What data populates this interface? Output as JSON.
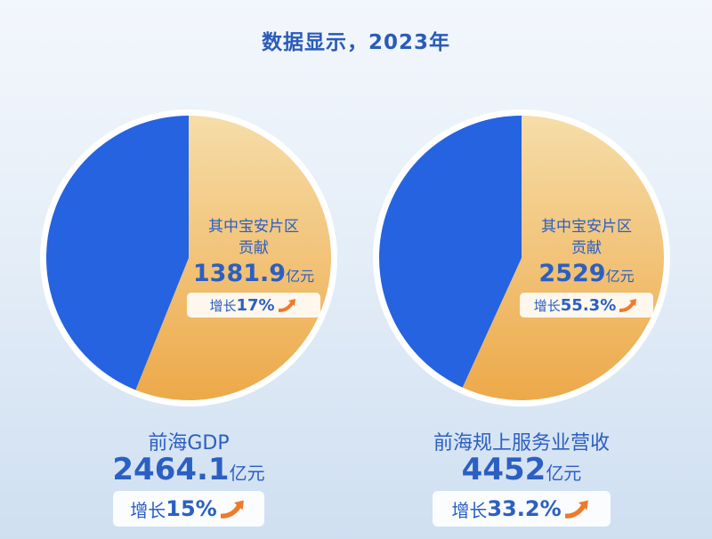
{
  "title": "数据显示，2023年",
  "colors": {
    "blue": "#2563e0",
    "gold_light": "#f6dda8",
    "gold_dark": "#eda949",
    "text": "#2b5fc2",
    "arrow": "#ee7a2b"
  },
  "chart_data": [
    {
      "type": "pie",
      "name": "前海GDP",
      "total": 2464.1,
      "unit": "亿元",
      "growth": "15%",
      "slices": [
        {
          "label": "其中宝安片区贡献",
          "value": 1381.9,
          "color": "#eda949",
          "growth": "17%"
        },
        {
          "label": "",
          "value": 1082.2,
          "color": "#2563e0"
        }
      ]
    },
    {
      "type": "pie",
      "name": "前海规上服务业营收",
      "total": 4452,
      "unit": "亿元",
      "growth": "33.2%",
      "slices": [
        {
          "label": "其中宝安片区贡献",
          "value": 2529,
          "color": "#eda949",
          "growth": "55.3%"
        },
        {
          "label": "",
          "value": 1923,
          "color": "#2563e0"
        }
      ]
    }
  ],
  "left": {
    "sub_line1": "其中宝安片区",
    "sub_line2": "贡献",
    "sub_value": "1381.9",
    "sub_unit": "亿元",
    "sub_growth_label": "增长",
    "sub_growth_value": "17%",
    "main_label": "前海GDP",
    "main_value": "2464.1",
    "main_unit": "亿元",
    "main_growth_label": "增长",
    "main_growth_value": "15%"
  },
  "right": {
    "sub_line1": "其中宝安片区",
    "sub_line2": "贡献",
    "sub_value": "2529",
    "sub_unit": "亿元",
    "sub_growth_label": "增长",
    "sub_growth_value": "55.3%",
    "main_label": "前海规上服务业营收",
    "main_value": "4452",
    "main_unit": "亿元",
    "main_growth_label": "增长",
    "main_growth_value": "33.2%"
  }
}
